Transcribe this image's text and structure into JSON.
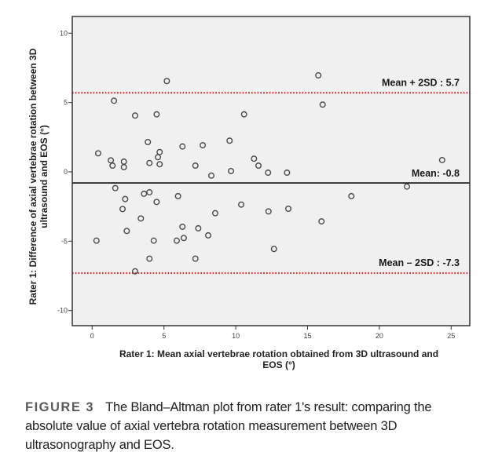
{
  "chart_data": {
    "type": "scatter",
    "title": "",
    "xlabel_lines": [
      "Rater 1: Mean axial vertebrae rotation obtained from 3D ultrasound and",
      "EOS (°)"
    ],
    "ylabel_lines": [
      "Rater 1: Difference of axial vertebrae rotation between 3D",
      "ultrasound and EOS (°)"
    ],
    "xlim": [
      -1.3,
      26.4
    ],
    "ylim": [
      -11.0,
      11.1
    ],
    "xticks": [
      0,
      5,
      10,
      15,
      20,
      25
    ],
    "yticks": [
      10,
      5,
      0,
      -5,
      -10
    ],
    "grid": false,
    "reference_lines": [
      {
        "name": "mean",
        "value": -0.8,
        "label": "Mean: -0.8",
        "style": "solid",
        "color": "#1a1a1a"
      },
      {
        "name": "upper-limit",
        "value": 5.7,
        "label": "Mean + 2SD : 5.7",
        "style": "dotted",
        "color": "#e0282e"
      },
      {
        "name": "lower-limit",
        "value": -7.3,
        "label": "Mean – 2SD : -7.3",
        "style": "dotted",
        "color": "#e0282e"
      }
    ],
    "points": [
      [
        5.2,
        6.55
      ],
      [
        1.52,
        5.13
      ],
      [
        2.99,
        4.06
      ],
      [
        4.49,
        4.15
      ],
      [
        3.88,
        2.15
      ],
      [
        6.29,
        1.83
      ],
      [
        7.7,
        1.92
      ],
      [
        0.42,
        1.34
      ],
      [
        1.3,
        0.83
      ],
      [
        1.42,
        0.45
      ],
      [
        2.21,
        0.74
      ],
      [
        2.21,
        0.34
      ],
      [
        3.99,
        0.64
      ],
      [
        4.7,
        1.43
      ],
      [
        4.58,
        1.06
      ],
      [
        4.7,
        0.55
      ],
      [
        7.19,
        0.45
      ],
      [
        8.3,
        -0.27
      ],
      [
        1.61,
        -1.17
      ],
      [
        2.3,
        -1.96
      ],
      [
        3.61,
        -1.58
      ],
      [
        3.99,
        -1.47
      ],
      [
        4.49,
        -2.17
      ],
      [
        5.98,
        -1.75
      ],
      [
        2.12,
        -2.68
      ],
      [
        3.39,
        -3.36
      ],
      [
        8.57,
        -2.98
      ],
      [
        6.29,
        -3.96
      ],
      [
        7.39,
        -4.07
      ],
      [
        2.41,
        -4.26
      ],
      [
        8.08,
        -4.58
      ],
      [
        0.3,
        -4.96
      ],
      [
        4.29,
        -4.96
      ],
      [
        5.89,
        -4.96
      ],
      [
        6.38,
        -4.77
      ],
      [
        3.99,
        -6.26
      ],
      [
        7.19,
        -6.26
      ],
      [
        2.99,
        -7.17
      ],
      [
        15.75,
        6.96
      ],
      [
        16.05,
        4.85
      ],
      [
        10.58,
        4.15
      ],
      [
        9.57,
        2.25
      ],
      [
        11.27,
        0.95
      ],
      [
        11.58,
        0.45
      ],
      [
        12.25,
        -0.06
      ],
      [
        13.57,
        -0.06
      ],
      [
        9.67,
        0.06
      ],
      [
        10.38,
        -2.36
      ],
      [
        12.28,
        -2.85
      ],
      [
        13.66,
        -2.66
      ],
      [
        15.97,
        -3.57
      ],
      [
        18.05,
        -1.75
      ],
      [
        12.66,
        -5.56
      ],
      [
        24.37,
        0.85
      ],
      [
        21.92,
        -1.06
      ]
    ],
    "colors": {
      "plot_bg": "#f0f0f0",
      "frame": "#333333",
      "marker": "#4a4a4a"
    }
  },
  "caption": {
    "label": "FIGURE 3",
    "text": "The Bland–Altman plot from rater 1's result: comparing the absolute value of axial vertebra rotation measurement between 3D ultrasonography and EOS."
  }
}
